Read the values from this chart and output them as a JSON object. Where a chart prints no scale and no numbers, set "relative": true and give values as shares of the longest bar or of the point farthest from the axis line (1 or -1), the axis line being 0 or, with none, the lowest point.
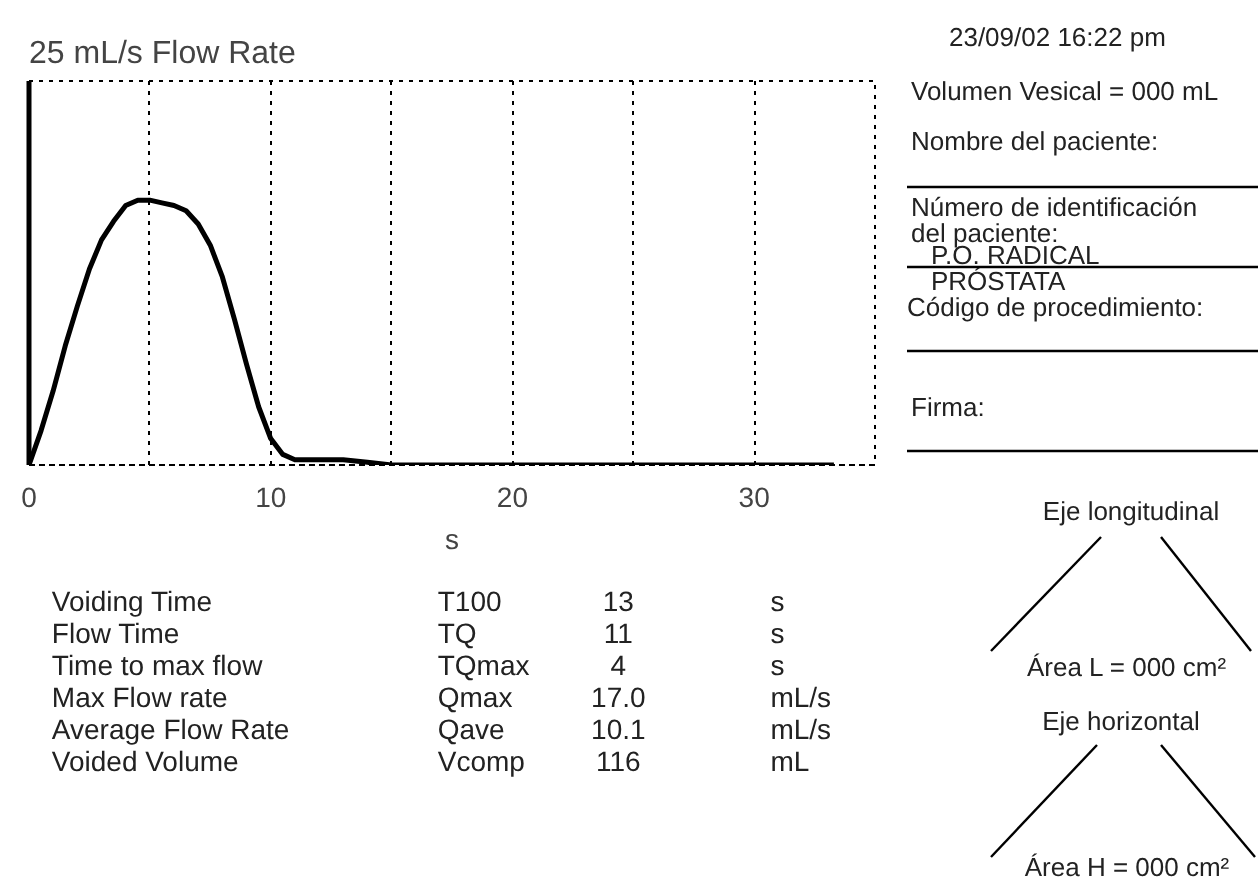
{
  "chart_data": {
    "type": "line",
    "title": "25 mL/s Flow Rate",
    "xlabel": "s",
    "relative": true,
    "x": [
      0,
      0.5,
      1,
      1.5,
      2,
      2.5,
      3,
      3.5,
      4,
      4.5,
      5,
      5.5,
      6,
      6.5,
      7,
      7.5,
      8,
      8.5,
      9,
      9.5,
      10,
      10.5,
      11,
      12,
      13,
      14,
      15,
      20,
      25,
      30,
      33.3
    ],
    "series": [
      {
        "color": "#000000",
        "values": [
          0,
          0.13,
          0.28,
          0.45,
          0.6,
          0.74,
          0.85,
          0.92,
          0.98,
          1,
          1,
          0.99,
          0.98,
          0.96,
          0.91,
          0.83,
          0.71,
          0.55,
          0.38,
          0.22,
          0.1,
          0.04,
          0.02,
          0.02,
          0.02,
          0.01,
          0,
          0,
          0,
          0,
          0
        ]
      }
    ],
    "xlim": [
      0,
      35
    ],
    "xticks": [
      0,
      {
        "value": 5,
        "label": null
      },
      10,
      {
        "value": 15,
        "label": null
      },
      20,
      {
        "value": 25,
        "label": null
      },
      30,
      {
        "value": 35,
        "label": null
      }
    ],
    "grid": "x",
    "marker": "none",
    "line_style": "solid",
    "annotations": [
      "Voiding Time",
      "T100",
      "13",
      "s",
      "Flow Time",
      "TQ",
      "11",
      "s",
      "Time to max flow",
      "TQmax",
      "4",
      "s",
      "Max Flow rate",
      "Qmax",
      "17.0",
      "mL/s",
      "Average Flow Rate",
      "Qave",
      "10.1",
      "mL/s",
      "Voided Volume",
      "Vcomp",
      "116",
      "mL",
      "23/09/02  16:22 pm",
      "Volumen Vesical = 000 mL",
      "Nombre del paciente:",
      "Número de identificación del paciente:",
      "P.O. RADICAL PRÓSTATA",
      "Código de procedimiento:",
      "Firma:",
      "Eje longitudinal",
      "Área L = 000 cm²",
      "Eje horizontal",
      "Área H = 000 cm²"
    ]
  }
}
